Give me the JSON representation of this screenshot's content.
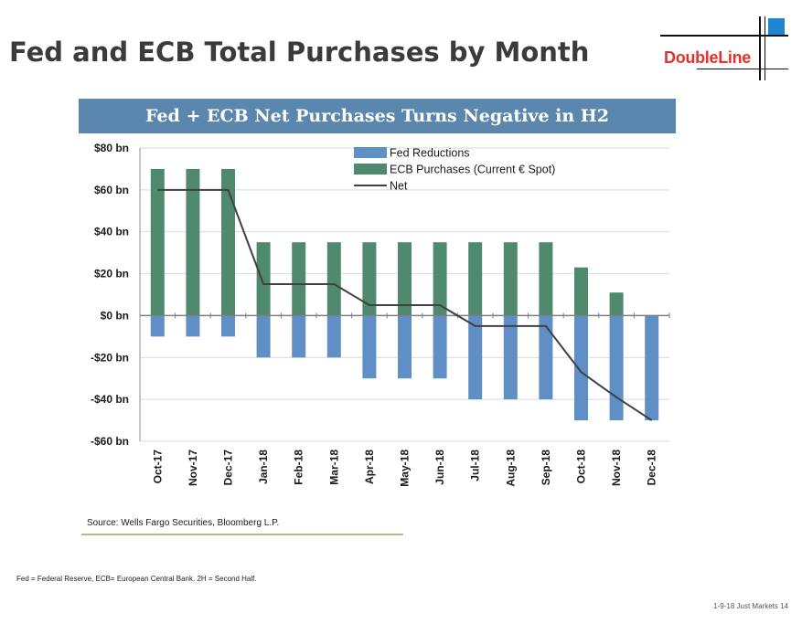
{
  "slide": {
    "title": "Fed and ECB Total Purchases by Month",
    "logo_text": "DoubleLine",
    "footnote": "Fed = Federal Reserve, ECB= European Central Bank. 2H = Second Half.",
    "footer": "1-9-18 Just Markets    14"
  },
  "colors": {
    "fed": "#5f8fc4",
    "ecb": "#4f8a6f",
    "net": "#404040",
    "banner": "#5b86ae",
    "logo_red": "#e5322d",
    "logo_blue": "#1f86d0"
  },
  "chart_data": {
    "type": "bar",
    "title": "Fed + ECB Net Purchases Turns Negative in H2",
    "source": "Source: Wells Fargo Securities, Bloomberg L.P.",
    "categories": [
      "Oct-17",
      "Nov-17",
      "Dec-17",
      "Jan-18",
      "Feb-18",
      "Mar-18",
      "Apr-18",
      "May-18",
      "Jun-18",
      "Jul-18",
      "Aug-18",
      "Sep-18",
      "Oct-18",
      "Nov-18",
      "Dec-18"
    ],
    "series": [
      {
        "name": "Fed Reductions",
        "type": "bar",
        "values": [
          -10,
          -10,
          -10,
          -20,
          -20,
          -20,
          -30,
          -30,
          -30,
          -40,
          -40,
          -40,
          -50,
          -50,
          -50
        ]
      },
      {
        "name": "ECB Purchases (Current € Spot)",
        "type": "bar",
        "values": [
          70,
          70,
          70,
          35,
          35,
          35,
          35,
          35,
          35,
          35,
          35,
          35,
          23,
          11,
          0
        ]
      },
      {
        "name": "Net",
        "type": "line",
        "values": [
          60,
          60,
          60,
          15,
          15,
          15,
          5,
          5,
          5,
          -5,
          -5,
          -5,
          -27,
          -39,
          -50
        ]
      }
    ],
    "y_ticks": [
      80,
      60,
      40,
      20,
      0,
      -20,
      -40,
      -60
    ],
    "y_tick_labels": [
      "$80 bn",
      "$60 bn",
      "$40 bn",
      "$20 bn",
      "$0 bn",
      "-$20 bn",
      "-$40 bn",
      "-$60 bn"
    ],
    "ylim": [
      -60,
      80
    ],
    "grid": true,
    "legend_position": "top-right"
  }
}
